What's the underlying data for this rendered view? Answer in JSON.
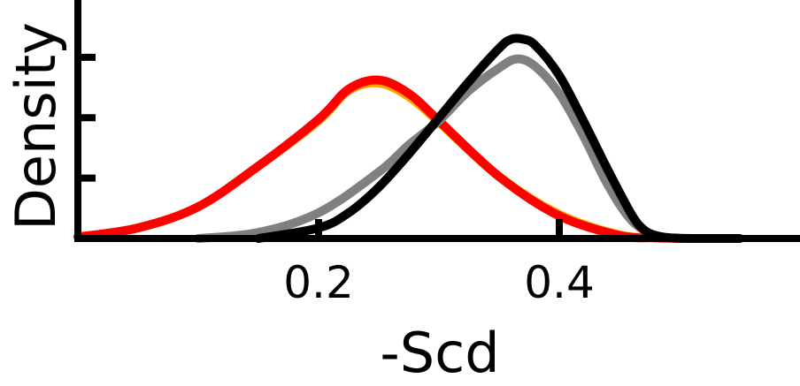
{
  "chart_data": {
    "type": "line",
    "title": "",
    "xlabel": "-Scd",
    "ylabel": "Density",
    "xlim": [
      0.0,
      0.6
    ],
    "ylim": [
      0,
      7.9
    ],
    "x_ticks": [
      0.2,
      0.4
    ],
    "x_tick_labels": [
      "0.2",
      "0.4"
    ],
    "y_ticks": [
      2,
      4,
      6
    ],
    "y_tick_labels_shown": false,
    "grid": false,
    "legend": "none",
    "series": [
      {
        "color": "#ffa500",
        "x": [
          0.0,
          0.05,
          0.1,
          0.15,
          0.2,
          0.225,
          0.25,
          0.275,
          0.3,
          0.35,
          0.4,
          0.45,
          0.48,
          0.5
        ],
        "y": [
          0.05,
          0.35,
          1.05,
          2.4,
          3.9,
          4.9,
          5.15,
          4.7,
          3.85,
          2.05,
          0.8,
          0.12,
          0.03,
          0.0
        ]
      },
      {
        "color": "#ff0000",
        "x": [
          0.0,
          0.05,
          0.1,
          0.15,
          0.2,
          0.225,
          0.25,
          0.275,
          0.3,
          0.35,
          0.4,
          0.45,
          0.48,
          0.5
        ],
        "y": [
          0.05,
          0.35,
          1.05,
          2.4,
          3.95,
          4.95,
          5.25,
          4.8,
          3.9,
          2.05,
          0.75,
          0.1,
          0.02,
          0.0
        ]
      },
      {
        "color": "#808080",
        "x": [
          0.1,
          0.15,
          0.2,
          0.25,
          0.275,
          0.3,
          0.325,
          0.35,
          0.365,
          0.38,
          0.4,
          0.42,
          0.44,
          0.46,
          0.48,
          0.5,
          0.55
        ],
        "y": [
          0.0,
          0.2,
          0.85,
          2.2,
          3.1,
          3.9,
          4.9,
          5.65,
          5.95,
          5.7,
          4.8,
          3.4,
          1.8,
          0.6,
          0.1,
          0.01,
          0.0
        ]
      },
      {
        "color": "#000000",
        "x": [
          0.15,
          0.2,
          0.225,
          0.25,
          0.275,
          0.3,
          0.325,
          0.35,
          0.36,
          0.37,
          0.38,
          0.4,
          0.42,
          0.44,
          0.46,
          0.47,
          0.48,
          0.5,
          0.55
        ],
        "y": [
          0.0,
          0.35,
          0.85,
          1.7,
          2.8,
          4.0,
          5.2,
          6.3,
          6.6,
          6.6,
          6.4,
          5.4,
          3.9,
          2.3,
          0.8,
          0.3,
          0.1,
          0.01,
          0.0
        ]
      }
    ]
  }
}
